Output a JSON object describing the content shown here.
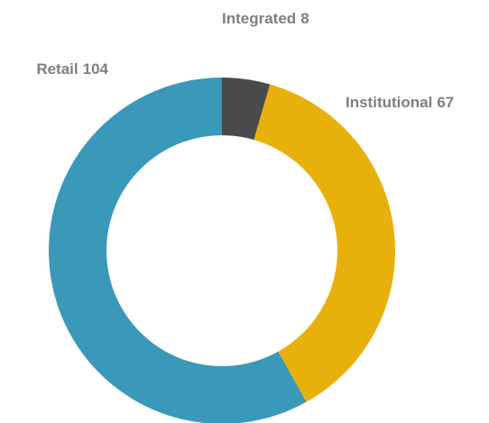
{
  "chart_data": {
    "type": "donut",
    "categories": [
      "Integrated",
      "Institutional",
      "Retail"
    ],
    "values": [
      8,
      67,
      104
    ],
    "colors": [
      "#4a4a4c",
      "#e8b00a",
      "#3a98b9"
    ]
  }
}
